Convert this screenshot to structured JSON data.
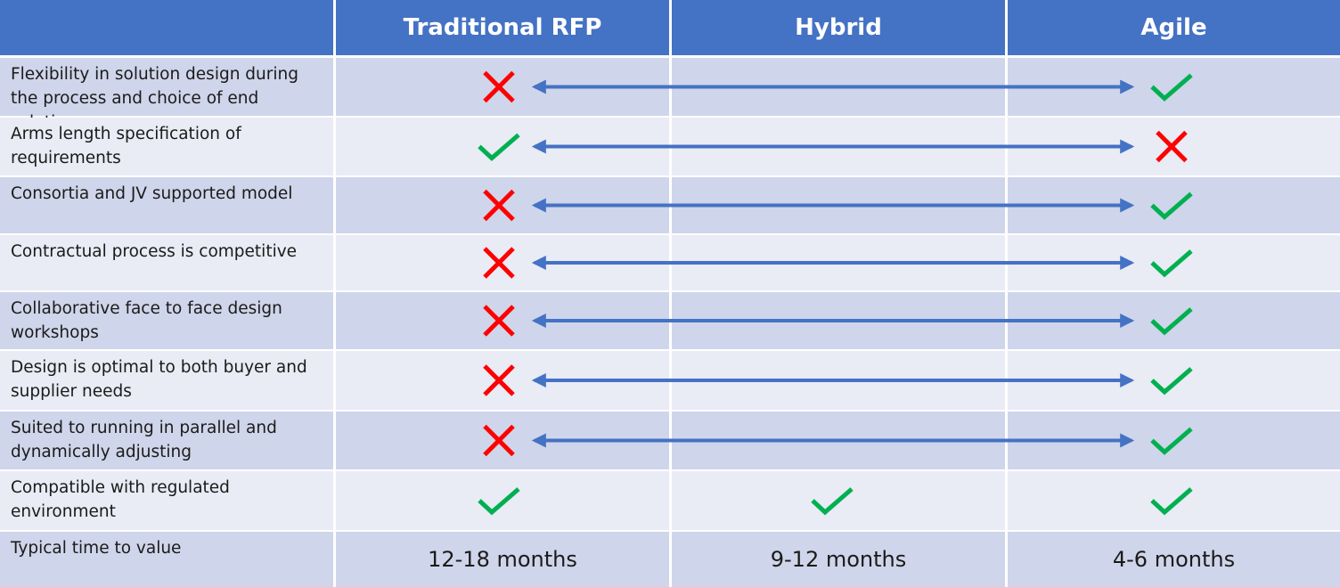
{
  "header": {
    "columns": [
      "Traditional RFP",
      "Hybrid",
      "Agile"
    ]
  },
  "rows": [
    {
      "label": "Flexibility in solution design during the process and choice of end solution"
    },
    {
      "label": "Arms length specification of requirements"
    },
    {
      "label": "Consortia and JV supported model"
    },
    {
      "label": "Contractual process is competitive"
    },
    {
      "label": "Collaborative face to face design workshops"
    },
    {
      "label": "Design is optimal to both buyer and supplier needs"
    },
    {
      "label": "Suited to running in parallel and dynamically adjusting"
    },
    {
      "label": "Compatible with regulated environment"
    },
    {
      "label": "Typical time to value",
      "values": [
        "12-18 months",
        "9-12 months",
        "4-6 months"
      ]
    }
  ]
}
